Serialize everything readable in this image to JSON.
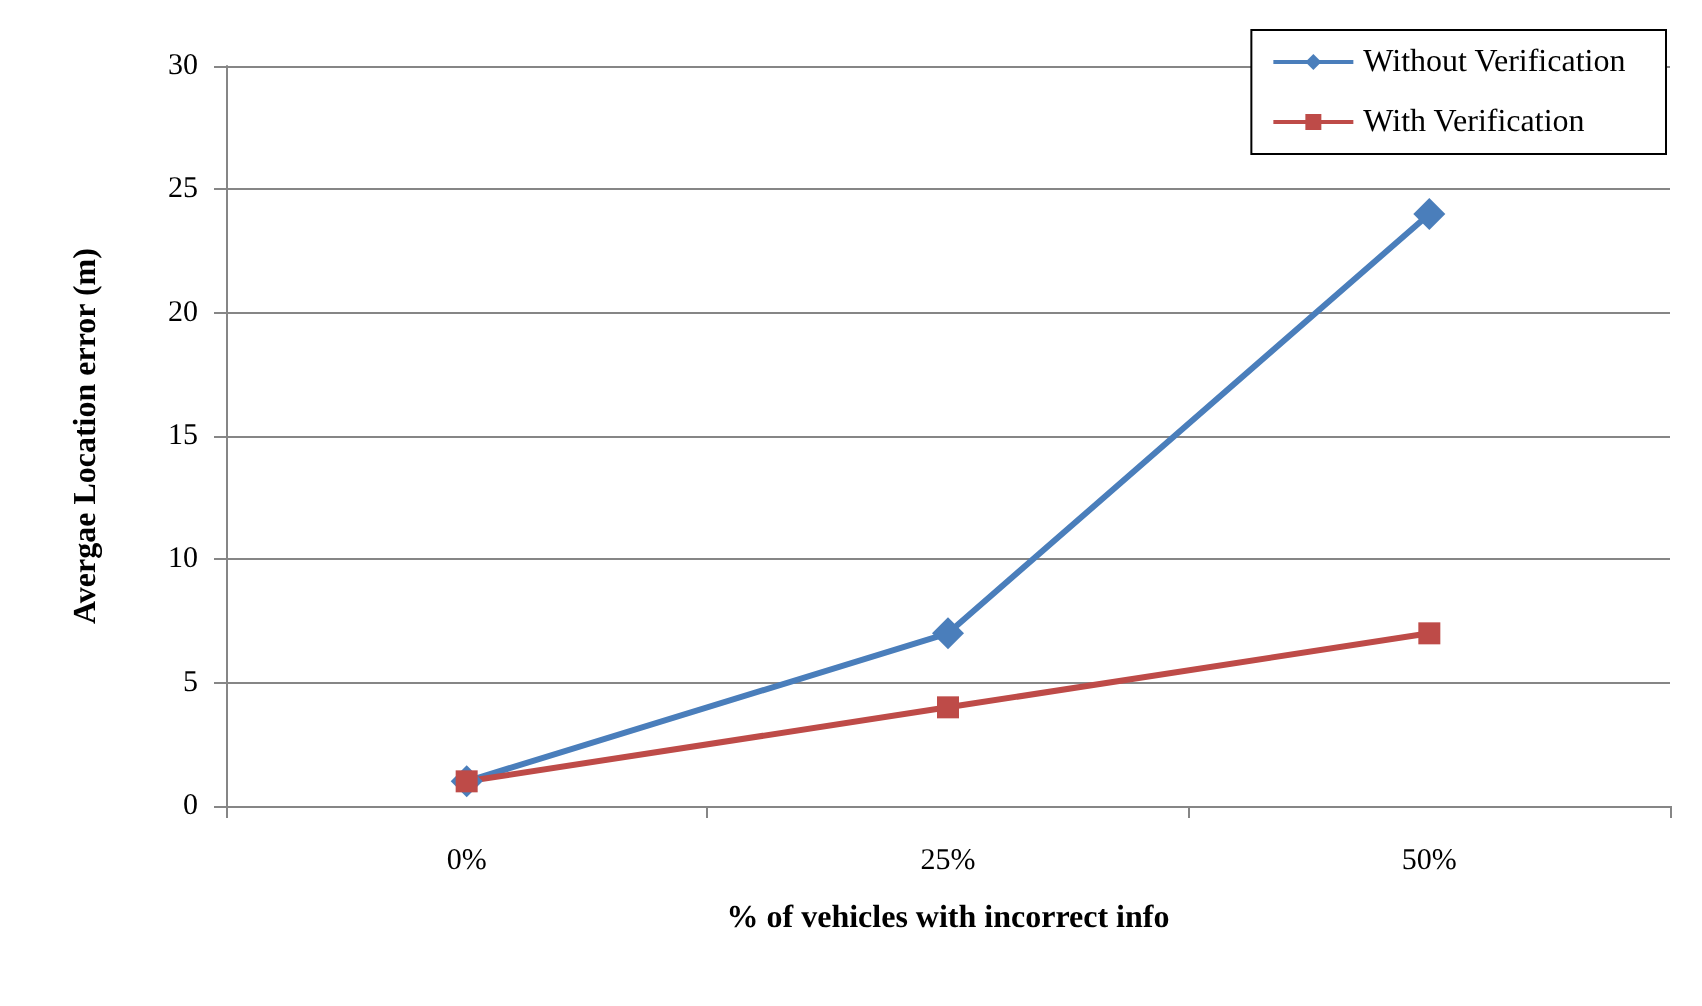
{
  "chart_data": {
    "type": "line",
    "xlabel": "% of vehicles with incorrect info",
    "ylabel": "Avergae Location error (m)",
    "categories": [
      "0%",
      "25%",
      "50%"
    ],
    "series": [
      {
        "name": "Without Verification",
        "color": "#4a7ebb",
        "marker": "diamond",
        "values": [
          1,
          7,
          24
        ]
      },
      {
        "name": "With Verification",
        "color": "#be4b48",
        "marker": "square",
        "values": [
          1,
          4,
          7
        ]
      }
    ],
    "ylim": [
      0,
      30
    ],
    "yticks": [
      0,
      5,
      10,
      15,
      20,
      25,
      30
    ],
    "grid": "y",
    "legend": "top right",
    "line_style": "solid"
  }
}
